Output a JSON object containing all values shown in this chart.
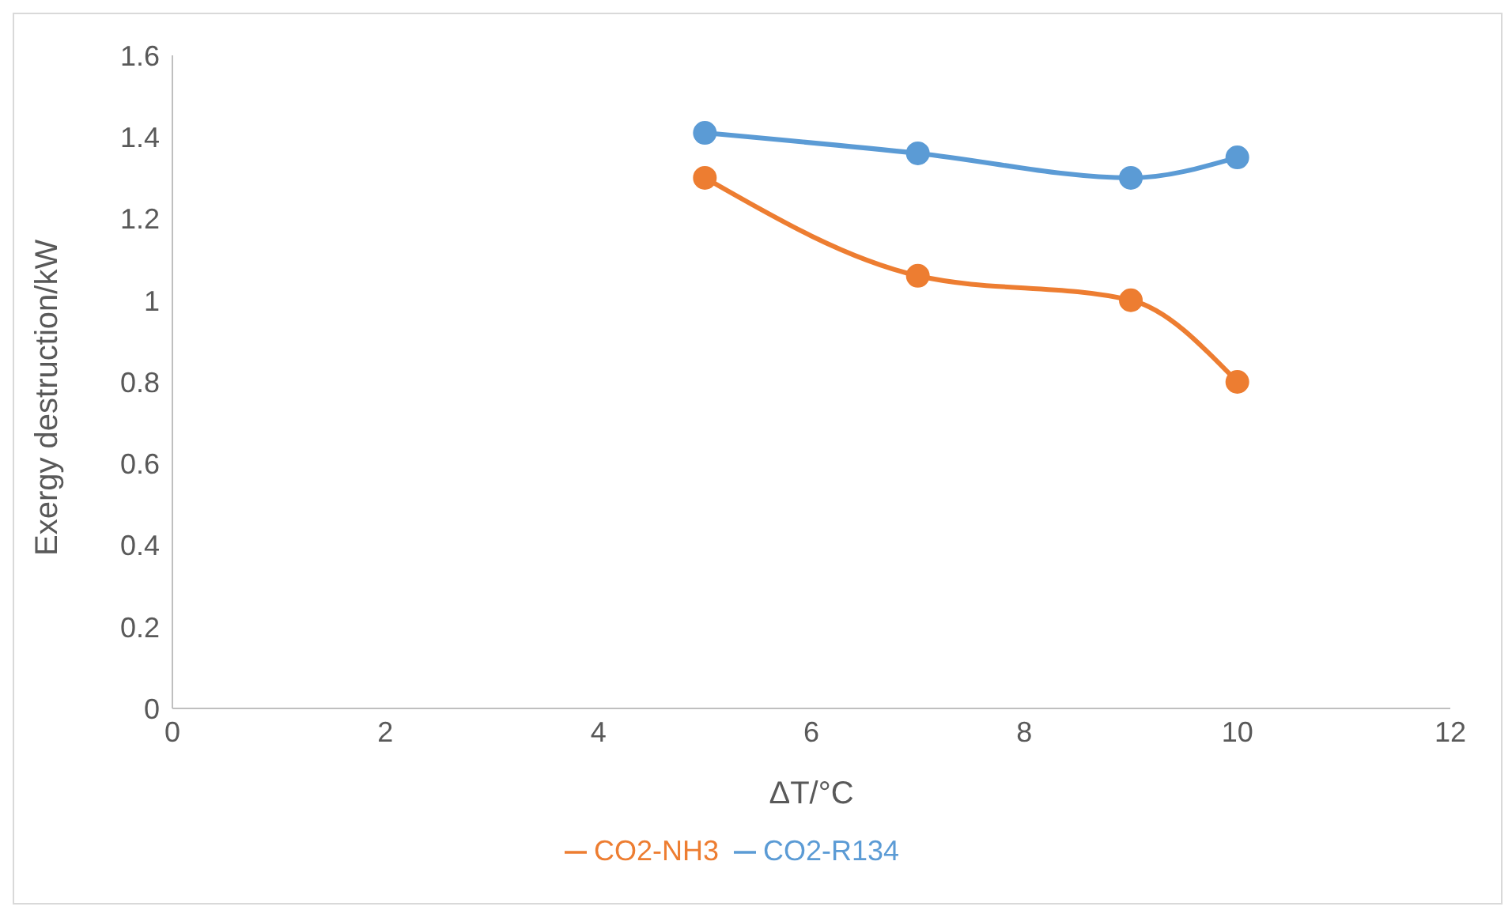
{
  "chart_data": {
    "type": "line",
    "xlabel": "ΔT/°C",
    "ylabel": "Exergy destruction/kW",
    "x": [
      5,
      7,
      9,
      10
    ],
    "series": [
      {
        "name": "CO2-R134",
        "color": "#5b9bd5",
        "values": [
          1.41,
          1.36,
          1.3,
          1.35
        ]
      },
      {
        "name": "CO2-NH3",
        "color": "#ed7d31",
        "values": [
          1.3,
          1.06,
          1.0,
          0.8
        ]
      }
    ],
    "xlim": [
      0,
      12
    ],
    "xticks": [
      0,
      2,
      4,
      6,
      8,
      10,
      12
    ],
    "ylim": [
      0,
      1.6
    ],
    "yticks": [
      0,
      0.2,
      0.4,
      0.6,
      0.8,
      1,
      1.2,
      1.4,
      1.6
    ],
    "grid": false,
    "legend": "bottom",
    "marker": "circle",
    "line_style": "solid"
  }
}
